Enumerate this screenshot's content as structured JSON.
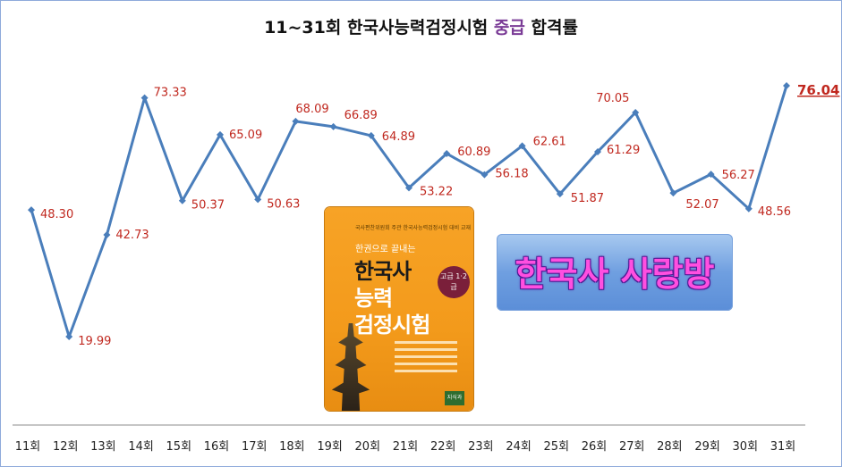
{
  "title": {
    "prefix": "11~31회 한국사능력검정시험 ",
    "highlight": "중급",
    "suffix": " 합격률"
  },
  "chart_data": {
    "type": "line",
    "categories": [
      "11회",
      "12회",
      "13회",
      "14회",
      "15회",
      "16회",
      "17회",
      "18회",
      "19회",
      "20회",
      "21회",
      "22회",
      "23회",
      "24회",
      "25회",
      "26회",
      "27회",
      "28회",
      "29회",
      "30회",
      "31회"
    ],
    "values": [
      48.3,
      19.99,
      42.73,
      73.33,
      50.37,
      65.09,
      50.63,
      68.09,
      66.89,
      64.89,
      53.22,
      60.89,
      56.18,
      62.61,
      51.87,
      61.29,
      70.05,
      52.07,
      56.27,
      48.56,
      76.04
    ],
    "labels": [
      "48.30",
      "19.99",
      "42.73",
      "73.33",
      "50.37",
      "65.09",
      "50.63",
      "68.09",
      "66.89",
      "64.89",
      "53.22",
      "60.89",
      "56.18",
      "62.61",
      "51.87",
      "61.29",
      "70.05",
      "52.07",
      "56.27",
      "48.56",
      "76.04"
    ],
    "line_color": "#4a7ebb",
    "label_color": "#c0281f",
    "grid": false
  },
  "book": {
    "top_small": "국사편찬위원회 주관 한국사능력검정시험 대비 교재",
    "subtitle": "한권으로 끝내는",
    "title_1": "한국사",
    "title_2": "능력",
    "title_3": "검정시험",
    "badge": "고급 1·2급",
    "publisher": "지식과"
  },
  "banner": {
    "text": "한국사 사랑방"
  }
}
